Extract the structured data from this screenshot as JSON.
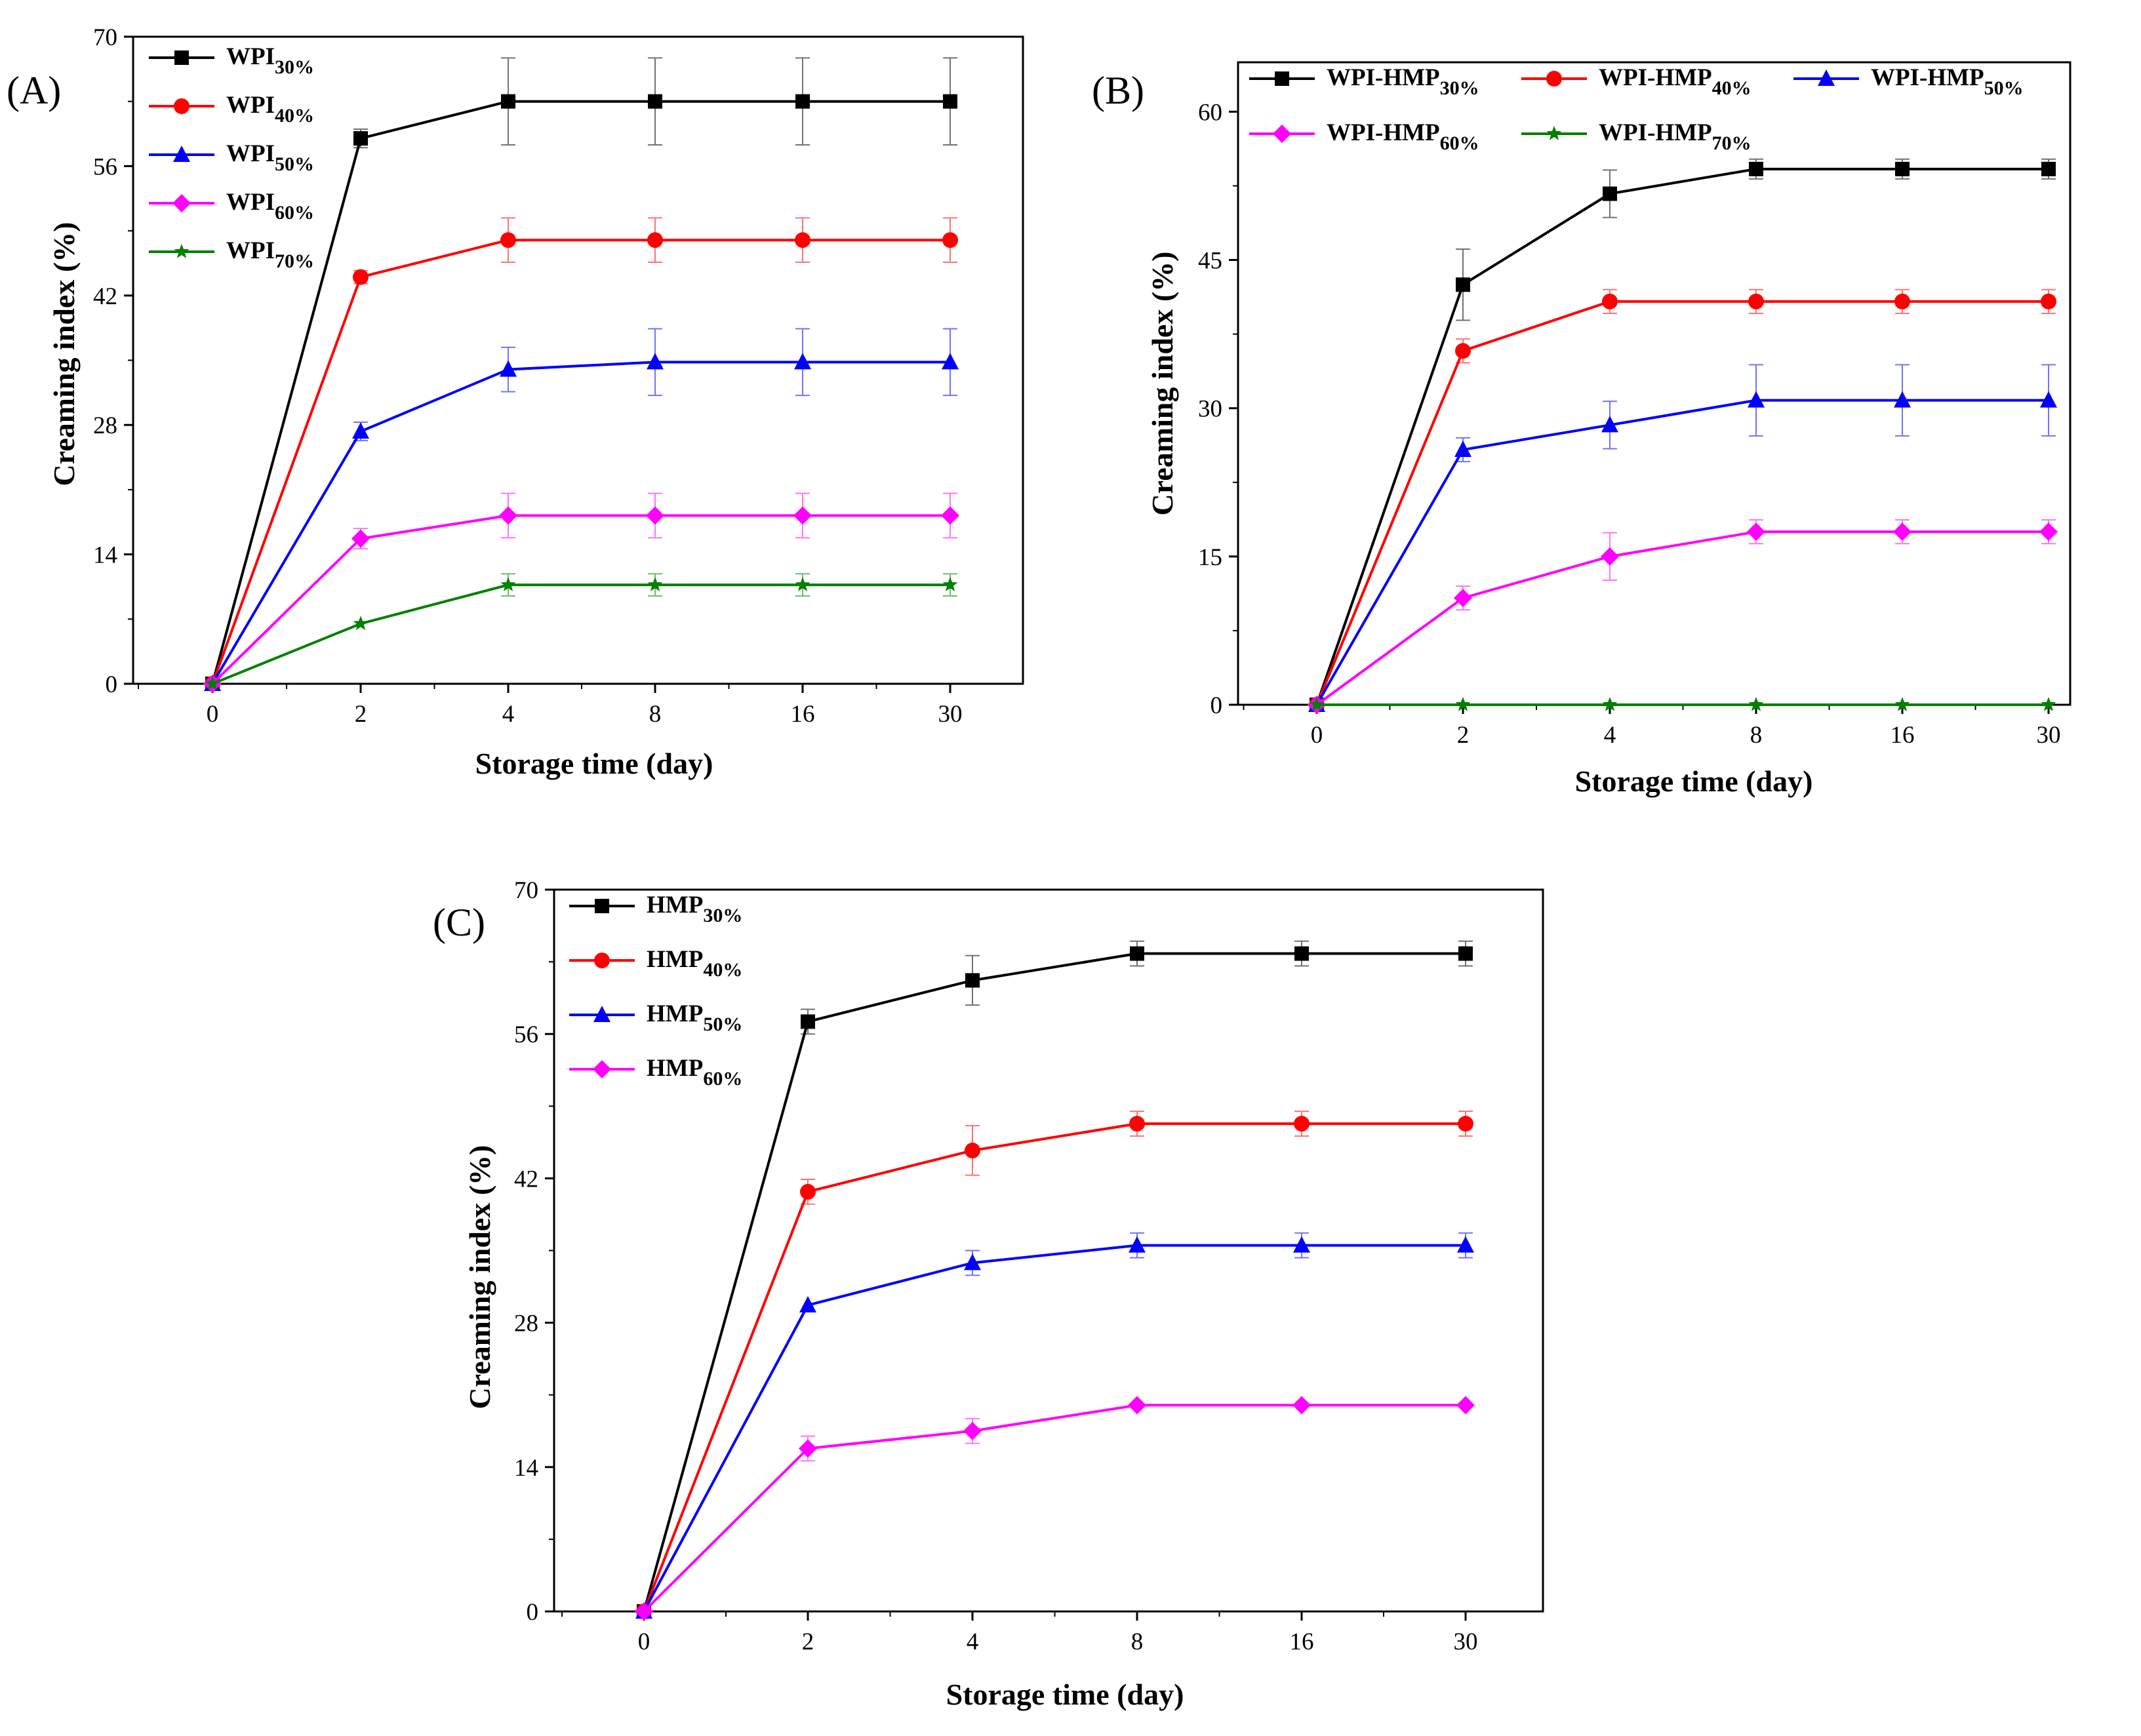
{
  "figure": {
    "panels": [
      {
        "id": "A",
        "label": "(A)",
        "xlabel": "Storage time (day)",
        "ylabel": "Creaming index (%)"
      },
      {
        "id": "B",
        "label": "(B)",
        "xlabel": "Storage time (day)",
        "ylabel": "Creaming index (%)"
      },
      {
        "id": "C",
        "label": "(C)",
        "xlabel": "Storage time (day)",
        "ylabel": "Creaming index (%)"
      }
    ]
  },
  "colors": {
    "black": "#000000",
    "red": "#ff0000",
    "blue": "#0000ff",
    "magenta": "#ff00ff",
    "green": "#008000"
  },
  "chart_data": [
    {
      "type": "line",
      "panel": "A",
      "title": "",
      "xlabel": "Storage time (day)",
      "ylabel": "Creaming index (%)",
      "categories": [
        "0",
        "2",
        "4",
        "8",
        "16",
        "30"
      ],
      "ylim": [
        0,
        70
      ],
      "yticks": [
        0,
        14,
        28,
        42,
        56,
        70
      ],
      "series": [
        {
          "name": "WPI",
          "sub": "30%",
          "color": "#000000",
          "marker": "square",
          "values": [
            0,
            59,
            63,
            63,
            63,
            63
          ],
          "errors": [
            0,
            1,
            4.7,
            4.7,
            4.7,
            4.7
          ]
        },
        {
          "name": "WPI",
          "sub": "40%",
          "color": "#ff0000",
          "marker": "circle",
          "values": [
            0,
            44,
            48,
            48,
            48,
            48
          ],
          "errors": [
            0,
            0.7,
            2.4,
            2.4,
            2.4,
            2.4
          ]
        },
        {
          "name": "WPI",
          "sub": "50%",
          "color": "#0000ff",
          "marker": "triangle",
          "values": [
            0,
            27.3,
            34,
            34.8,
            34.8,
            34.8
          ],
          "errors": [
            0,
            1,
            2.4,
            3.6,
            3.6,
            3.6
          ]
        },
        {
          "name": "WPI",
          "sub": "60%",
          "color": "#ff00ff",
          "marker": "diamond",
          "values": [
            0,
            15.7,
            18.2,
            18.2,
            18.2,
            18.2
          ],
          "errors": [
            0,
            1.1,
            2.4,
            2.4,
            2.4,
            2.4
          ]
        },
        {
          "name": "WPI",
          "sub": "70%",
          "color": "#008000",
          "marker": "star",
          "values": [
            0,
            6.5,
            10.7,
            10.7,
            10.7,
            10.7
          ],
          "errors": [
            0,
            0,
            1.2,
            1.2,
            1.2,
            1.2
          ]
        }
      ]
    },
    {
      "type": "line",
      "panel": "B",
      "title": "",
      "xlabel": "Storage time (day)",
      "ylabel": "Creaming index (%)",
      "categories": [
        "0",
        "2",
        "4",
        "8",
        "16",
        "30"
      ],
      "ylim": [
        0,
        65
      ],
      "yticks": [
        0,
        15,
        30,
        45,
        60
      ],
      "series": [
        {
          "name": "WPI-HMP",
          "sub": "30%",
          "color": "#000000",
          "marker": "square",
          "values": [
            0,
            42.5,
            51.7,
            54.2,
            54.2,
            54.2
          ],
          "errors": [
            0,
            3.6,
            2.4,
            1,
            1,
            1
          ]
        },
        {
          "name": "WPI-HMP",
          "sub": "40%",
          "color": "#ff0000",
          "marker": "circle",
          "values": [
            0,
            35.8,
            40.8,
            40.8,
            40.8,
            40.8
          ],
          "errors": [
            0,
            1.2,
            1.2,
            1.2,
            1.2,
            1.2
          ]
        },
        {
          "name": "WPI-HMP",
          "sub": "50%",
          "color": "#0000ff",
          "marker": "triangle",
          "values": [
            0,
            25.8,
            28.3,
            30.8,
            30.8,
            30.8
          ],
          "errors": [
            0,
            1.2,
            2.4,
            3.6,
            3.6,
            3.6
          ]
        },
        {
          "name": "WPI-HMP",
          "sub": "60%",
          "color": "#ff00ff",
          "marker": "diamond",
          "values": [
            0,
            10.8,
            15,
            17.5,
            17.5,
            17.5
          ],
          "errors": [
            0,
            1.2,
            2.4,
            1.2,
            1.2,
            1.2
          ]
        },
        {
          "name": "WPI-HMP",
          "sub": "70%",
          "color": "#008000",
          "marker": "star",
          "values": [
            0,
            0,
            0,
            0,
            0,
            0
          ],
          "errors": [
            0,
            0,
            0,
            0,
            0,
            0
          ]
        }
      ]
    },
    {
      "type": "line",
      "panel": "C",
      "title": "",
      "xlabel": "Storage time (day)",
      "ylabel": "Creaming index (%)",
      "categories": [
        "0",
        "2",
        "4",
        "8",
        "16",
        "30"
      ],
      "ylim": [
        0,
        70
      ],
      "yticks": [
        0,
        14,
        28,
        42,
        56,
        70
      ],
      "series": [
        {
          "name": "HMP",
          "sub": "30%",
          "color": "#000000",
          "marker": "square",
          "values": [
            0,
            57.2,
            61.2,
            63.8,
            63.8,
            63.8
          ],
          "errors": [
            0,
            1.2,
            2.4,
            1.2,
            1.2,
            1.2
          ]
        },
        {
          "name": "HMP",
          "sub": "40%",
          "color": "#ff0000",
          "marker": "circle",
          "values": [
            0,
            40.7,
            44.7,
            47.3,
            47.3,
            47.3
          ],
          "errors": [
            0,
            1.2,
            2.4,
            1.2,
            1.2,
            1.2
          ]
        },
        {
          "name": "HMP",
          "sub": "50%",
          "color": "#0000ff",
          "marker": "triangle",
          "values": [
            0,
            29.7,
            33.8,
            35.5,
            35.5,
            35.5
          ],
          "errors": [
            0,
            0,
            1.2,
            1.2,
            1.2,
            1.2
          ]
        },
        {
          "name": "HMP",
          "sub": "60%",
          "color": "#ff00ff",
          "marker": "diamond",
          "values": [
            0,
            15.8,
            17.5,
            20,
            20,
            20
          ],
          "errors": [
            0,
            1.2,
            1.2,
            0,
            0,
            0
          ]
        }
      ]
    }
  ]
}
